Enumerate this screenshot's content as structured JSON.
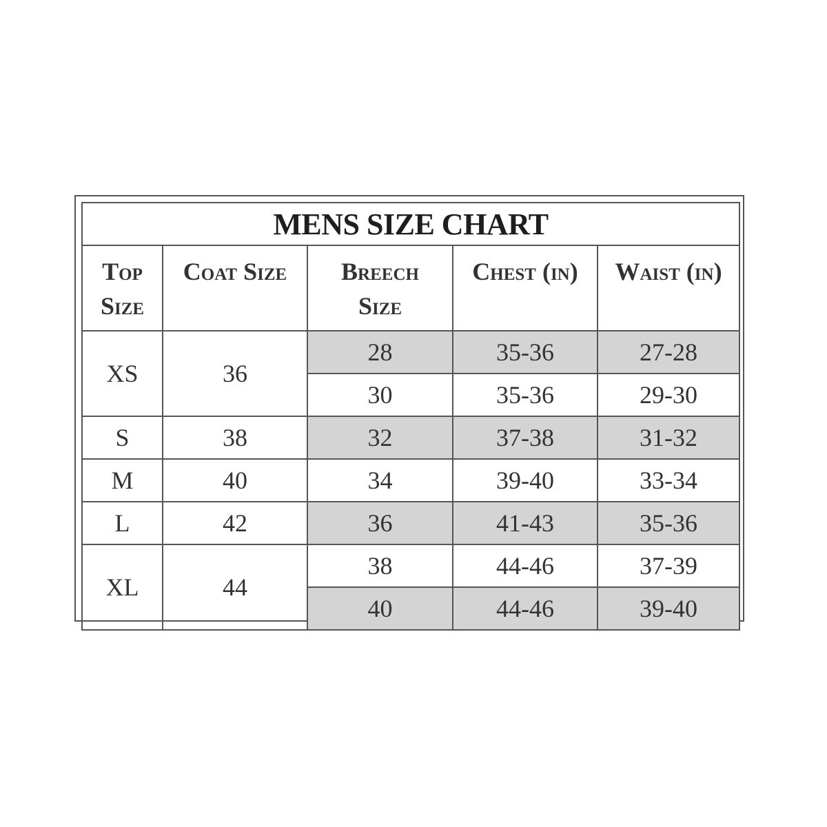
{
  "title": "MENS SIZE CHART",
  "headers": [
    "Top Size",
    "Coat Size",
    "Breech Size",
    "Chest (in)",
    "Waist (in)"
  ],
  "header_lines": [
    [
      "Top",
      "Size"
    ],
    [
      "Coat Size"
    ],
    [
      "Breech",
      "Size"
    ],
    [
      "Chest (in)"
    ],
    [
      "Waist (in)"
    ]
  ],
  "groups": [
    {
      "top": "XS",
      "coat": "36",
      "rows": [
        {
          "breech": "28",
          "chest": "35-36",
          "waist": "27-28",
          "shaded": true
        },
        {
          "breech": "30",
          "chest": "35-36",
          "waist": "29-30",
          "shaded": false
        }
      ]
    },
    {
      "top": "S",
      "coat": "38",
      "rows": [
        {
          "breech": "32",
          "chest": "37-38",
          "waist": "31-32",
          "shaded": true
        }
      ]
    },
    {
      "top": "M",
      "coat": "40",
      "rows": [
        {
          "breech": "34",
          "chest": "39-40",
          "waist": "33-34",
          "shaded": false
        }
      ]
    },
    {
      "top": "L",
      "coat": "42",
      "rows": [
        {
          "breech": "36",
          "chest": "41-43",
          "waist": "35-36",
          "shaded": true
        }
      ]
    },
    {
      "top": "XL",
      "coat": "44",
      "rows": [
        {
          "breech": "38",
          "chest": "44-46",
          "waist": "37-39",
          "shaded": false
        },
        {
          "breech": "40",
          "chest": "44-46",
          "waist": "39-40",
          "shaded": true
        }
      ]
    }
  ],
  "colors": {
    "shade": "#d4d4d4",
    "border": "#555555",
    "text": "#333333"
  }
}
